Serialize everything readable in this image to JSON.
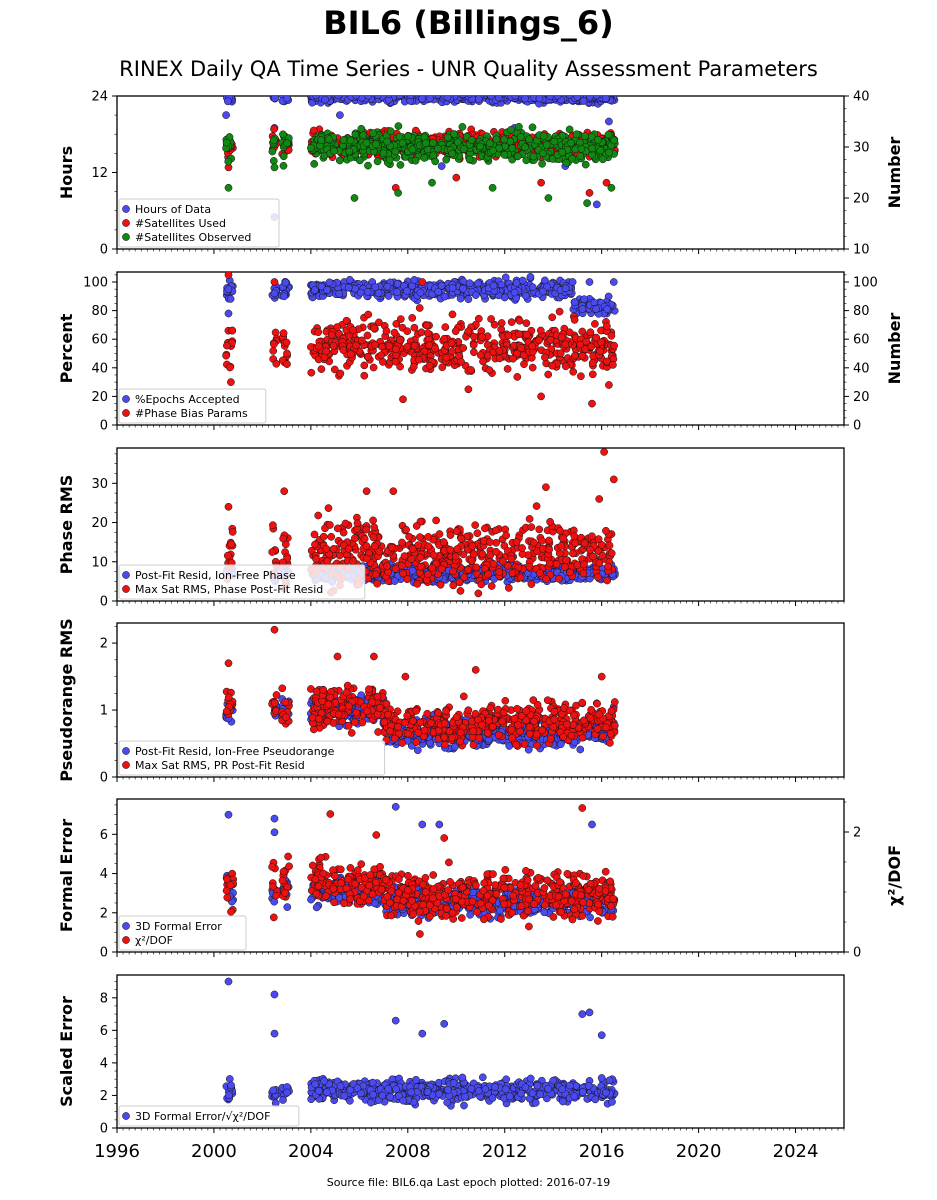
{
  "title": "BIL6 (Billings_6)",
  "subtitle": "RINEX Daily QA Time Series - UNR Quality Assessment Parameters",
  "footer": "Source file: BIL6.qa Last epoch plotted: 2016-07-19",
  "colors": {
    "blue": "#4a4aee",
    "red": "#ee1111",
    "green": "#118811"
  },
  "chart_data": [
    {
      "type": "scatter",
      "ylabel": "Hours",
      "ylabel_right": "Number",
      "ylim": [
        0,
        24
      ],
      "ylim_right": [
        10,
        40
      ],
      "yticks": [
        0,
        12,
        24
      ],
      "yticks_right": [
        10,
        20,
        30,
        40
      ],
      "legend_placement": "lower-left",
      "series": [
        {
          "name": "Hours of Data",
          "color": "blue",
          "axis": "left",
          "base": 23.8,
          "spread": 0.4,
          "outliers": [
            [
              2000.5,
              21
            ],
            [
              2002.5,
              19
            ],
            [
              2005.2,
              21
            ],
            [
              2007.9,
              17
            ],
            [
              2009.4,
              13
            ],
            [
              2011.0,
              17
            ],
            [
              2012.4,
              19
            ],
            [
              2014.5,
              13
            ],
            [
              2015.8,
              7
            ],
            [
              2016.3,
              20
            ],
            [
              2002.5,
              5
            ]
          ]
        },
        {
          "name": "#Satellites Used",
          "color": "red",
          "axis": "right",
          "base": 30.5,
          "spread": 1.2,
          "outliers": [
            [
              2000.6,
              26
            ],
            [
              2004.1,
              30
            ],
            [
              2007.5,
              22
            ],
            [
              2010.0,
              24
            ],
            [
              2013.5,
              23
            ],
            [
              2015.5,
              21
            ],
            [
              2016.2,
              23
            ]
          ]
        },
        {
          "name": "#Satellites Observed",
          "color": "green",
          "axis": "right",
          "base": 30.0,
          "spread": 1.4,
          "outliers": [
            [
              2000.6,
              22
            ],
            [
              2002.5,
              26
            ],
            [
              2005.8,
              20
            ],
            [
              2007.6,
              21
            ],
            [
              2009.0,
              23
            ],
            [
              2011.5,
              22
            ],
            [
              2013.8,
              20
            ],
            [
              2015.4,
              19
            ],
            [
              2016.4,
              22
            ]
          ]
        }
      ]
    },
    {
      "type": "scatter",
      "ylabel": "Percent",
      "ylabel_right": "Number",
      "ylim": [
        0,
        107
      ],
      "ylim_right": [
        0,
        107
      ],
      "yticks": [
        0,
        20,
        40,
        60,
        80,
        100
      ],
      "yticks_right": [
        0,
        20,
        40,
        60,
        80,
        100
      ],
      "legend_placement": "lower-left",
      "series": [
        {
          "name": "%Epochs Accepted",
          "color": "blue",
          "axis": "left",
          "base": 95,
          "spread": 3,
          "outliers": [
            [
              2000.6,
              78
            ],
            [
              2002.5,
              92
            ],
            [
              2010.5,
              88
            ],
            [
              2014.8,
              100
            ],
            [
              2015.5,
              100
            ],
            [
              2016.5,
              100
            ]
          ]
        },
        {
          "name": "#Phase Bias Params",
          "color": "red",
          "axis": "right",
          "base": 55,
          "spread": 9,
          "outliers": [
            [
              2000.6,
              105
            ],
            [
              2002.5,
              100
            ],
            [
              2000.7,
              30
            ],
            [
              2007.8,
              18
            ],
            [
              2008.6,
              100
            ],
            [
              2010.5,
              25
            ],
            [
              2013.5,
              20
            ],
            [
              2015.6,
              15
            ],
            [
              2016.3,
              28
            ]
          ]
        }
      ]
    },
    {
      "type": "scatter",
      "ylabel": "Phase RMS",
      "ylim": [
        0,
        39
      ],
      "yticks": [
        0,
        10,
        20,
        30
      ],
      "legend_placement": "lower-left",
      "series": [
        {
          "name": "Post-Fit Resid, Ion-Free Phase",
          "color": "blue",
          "axis": "left",
          "base": 7,
          "spread": 1,
          "outliers": []
        },
        {
          "name": "Max Sat RMS, Phase Post-Fit Resid",
          "color": "red",
          "axis": "left",
          "base": 12,
          "spread": 4,
          "outliers": [
            [
              2000.6,
              24
            ],
            [
              2002.9,
              28
            ],
            [
              2006.3,
              28
            ],
            [
              2007.4,
              28
            ],
            [
              2013.7,
              29
            ],
            [
              2015.9,
              26
            ],
            [
              2016.1,
              38
            ],
            [
              2016.5,
              31
            ]
          ]
        }
      ]
    },
    {
      "type": "scatter",
      "ylabel": "Pseudorange RMS",
      "ylim": [
        0,
        2.3
      ],
      "yticks": [
        0,
        1,
        2
      ],
      "legend_placement": "lower-left",
      "series": [
        {
          "name": "Post-Fit Resid, Ion-Free Pseudorange",
          "color": "blue",
          "axis": "left",
          "base": 0.65,
          "spread": 0.1,
          "outliers": [
            [
              2015.2,
              1.1
            ],
            [
              2015.8,
              1.1
            ],
            [
              2016.5,
              1.05
            ]
          ]
        },
        {
          "name": "Max Sat RMS, PR Post-Fit Resid",
          "color": "red",
          "axis": "left",
          "base": 0.8,
          "spread": 0.15,
          "outliers": [
            [
              2002.5,
              2.2
            ],
            [
              2000.6,
              1.7
            ],
            [
              2005.1,
              1.8
            ],
            [
              2006.6,
              1.8
            ],
            [
              2007.9,
              1.5
            ],
            [
              2010.8,
              1.6
            ],
            [
              2016.0,
              1.5
            ]
          ]
        }
      ]
    },
    {
      "type": "scatter",
      "ylabel": "Formal Error",
      "ylabel_right": "χ²/DOF",
      "ylim": [
        0,
        7.8
      ],
      "ylim_right": [
        0,
        2.55
      ],
      "yticks": [
        0,
        2,
        4,
        6
      ],
      "yticks_right": [
        0,
        2
      ],
      "legend_placement": "lower-left",
      "series": [
        {
          "name": "3D Formal Error",
          "color": "blue",
          "axis": "left",
          "base": 2.6,
          "spread": 0.35,
          "outliers": [
            [
              2000.6,
              7.0
            ],
            [
              2002.5,
              6.8
            ],
            [
              2007.5,
              7.4
            ],
            [
              2008.6,
              6.5
            ],
            [
              2009.3,
              6.5
            ],
            [
              2015.6,
              6.5
            ],
            [
              2002.5,
              6.1
            ]
          ]
        },
        {
          "name": "χ²/DOF",
          "color": "red",
          "axis": "right",
          "base": 0.95,
          "spread": 0.2,
          "outliers": [
            [
              2004.8,
              2.3
            ],
            [
              2006.7,
              1.95
            ],
            [
              2009.5,
              1.9
            ],
            [
              2015.2,
              2.4
            ],
            [
              2008.5,
              0.3
            ]
          ]
        }
      ]
    },
    {
      "type": "scatter",
      "ylabel": "Scaled Error",
      "ylim": [
        0,
        9.4
      ],
      "yticks": [
        0,
        2,
        4,
        6,
        8
      ],
      "legend_placement": "lower-left",
      "series": [
        {
          "name": "3D Formal Error/√χ²/DOF",
          "color": "blue",
          "axis": "left",
          "base": 2.3,
          "spread": 0.35,
          "outliers": [
            [
              2000.6,
              9.0
            ],
            [
              2002.5,
              8.2
            ],
            [
              2002.5,
              5.8
            ],
            [
              2007.5,
              6.6
            ],
            [
              2008.6,
              5.8
            ],
            [
              2009.5,
              6.4
            ],
            [
              2015.2,
              7.0
            ],
            [
              2015.5,
              7.1
            ],
            [
              2016.0,
              5.7
            ]
          ]
        }
      ]
    }
  ],
  "xaxis": {
    "xlim": [
      1996,
      2026
    ],
    "ticks": [
      "1996",
      "2000",
      "2004",
      "2008",
      "2012",
      "2016",
      "2020",
      "2024"
    ]
  },
  "data_segments": [
    [
      2000.5,
      2000.8
    ],
    [
      2002.4,
      2002.6
    ],
    [
      2002.8,
      2003.1
    ],
    [
      2004.0,
      2016.55
    ]
  ]
}
